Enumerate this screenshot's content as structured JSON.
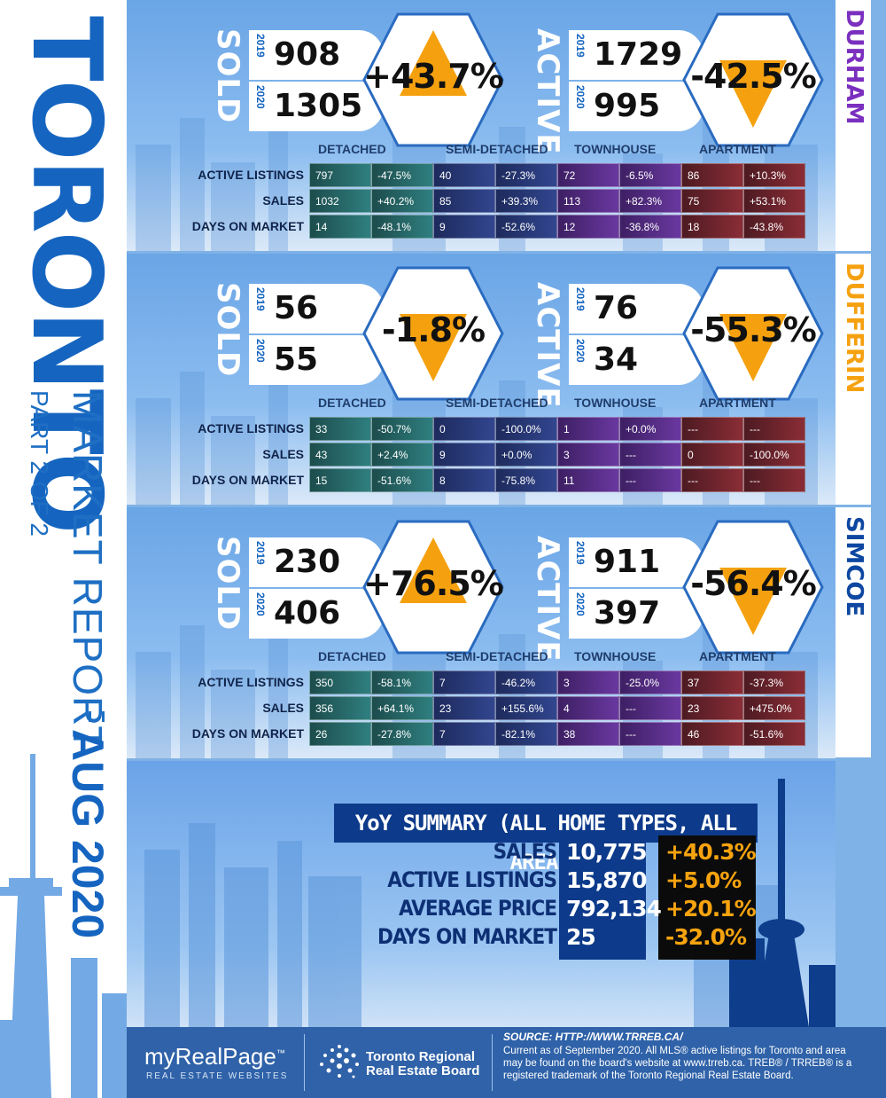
{
  "sidebar": {
    "city": "TORONTO",
    "subtitle": "MARKET REPORT",
    "part": "PART 2 OF 2",
    "period": "AUG 2020"
  },
  "labels": {
    "sold": "SOLD",
    "active": "ACTIVE",
    "year_2019": "2019",
    "year_2020": "2020",
    "active_listings": "ACTIVE LISTINGS",
    "sales": "SALES",
    "days_on_market": "DAYS ON MARKET",
    "detached": "DETACHED",
    "semi_detached": "SEMI-DETACHED",
    "townhouse": "TOWNHOUSE",
    "apartment": "APARTMENT"
  },
  "regions": [
    {
      "name": "DURHAM",
      "color": "#7b2fbf",
      "sold_2019": "908",
      "sold_2020": "1305",
      "sold_change": "+43.7%",
      "sold_dir": "up",
      "active_2019": "1729",
      "active_2020": "995",
      "active_change": "-42.5%",
      "active_dir": "down",
      "rows": [
        [
          "797",
          "-47.5%",
          "40",
          "-27.3%",
          "72",
          "-6.5%",
          "86",
          "+10.3%"
        ],
        [
          "1032",
          "+40.2%",
          "85",
          "+39.3%",
          "113",
          "+82.3%",
          "75",
          "+53.1%"
        ],
        [
          "14",
          "-48.1%",
          "9",
          "-52.6%",
          "12",
          "-36.8%",
          "18",
          "-43.8%"
        ]
      ]
    },
    {
      "name": "DUFFERIN",
      "color": "#f5a10f",
      "sold_2019": "56",
      "sold_2020": "55",
      "sold_change": "-1.8%",
      "sold_dir": "down",
      "active_2019": "76",
      "active_2020": "34",
      "active_change": "-55.3%",
      "active_dir": "down",
      "rows": [
        [
          "33",
          "-50.7%",
          "0",
          "-100.0%",
          "1",
          "+0.0%",
          "---",
          "---"
        ],
        [
          "43",
          "+2.4%",
          "9",
          "+0.0%",
          "3",
          "---",
          "0",
          "-100.0%"
        ],
        [
          "15",
          "-51.6%",
          "8",
          "-75.8%",
          "11",
          "---",
          "---",
          "---"
        ]
      ]
    },
    {
      "name": "SIMCOE",
      "color": "#0d47a1",
      "sold_2019": "230",
      "sold_2020": "406",
      "sold_change": "+76.5%",
      "sold_dir": "up",
      "active_2019": "911",
      "active_2020": "397",
      "active_change": "-56.4%",
      "active_dir": "down",
      "rows": [
        [
          "350",
          "-58.1%",
          "7",
          "-46.2%",
          "3",
          "-25.0%",
          "37",
          "-37.3%"
        ],
        [
          "356",
          "+64.1%",
          "23",
          "+155.6%",
          "4",
          "---",
          "23",
          "+475.0%"
        ],
        [
          "26",
          "-27.8%",
          "7",
          "-82.1%",
          "38",
          "---",
          "46",
          "-51.6%"
        ]
      ]
    }
  ],
  "summary": {
    "title": "YoY SUMMARY (ALL HOME TYPES, ALL AREAS)",
    "rows": [
      {
        "label": "SALES",
        "value": "10,775",
        "change": "+40.3%"
      },
      {
        "label": "ACTIVE LISTINGS",
        "value": "15,870",
        "change": "+5.0%"
      },
      {
        "label": "AVERAGE PRICE",
        "value": "792,134",
        "change": "+20.1%"
      },
      {
        "label": "DAYS ON MARKET",
        "value": "25",
        "change": "-32.0%"
      }
    ]
  },
  "footer": {
    "brand": "myRealPage",
    "brand_tm": "™",
    "brand_sub": "REAL ESTATE WEBSITES",
    "board_line1": "Toronto Regional",
    "board_line2": "Real Estate Board",
    "source": "SOURCE: HTTP://WWW.TRREB.CA/",
    "fine_print": "Current as of September 2020.  All MLS® active listings for Toronto and area may be found on the board's website at www.trreb.ca. TREB® / TRREB® is a registered trademark of the Toronto Regional Real Estate Board."
  },
  "colors": {
    "up_triangle": "#f5a10f",
    "down_triangle": "#f5a10f",
    "accent_blue": "#1565c0",
    "background": "#7fb2e6"
  }
}
